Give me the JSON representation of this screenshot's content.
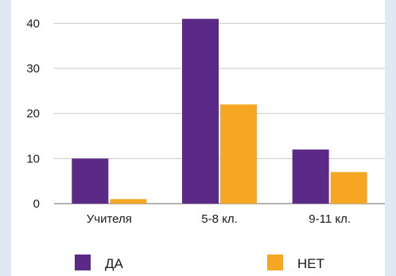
{
  "chart_data": {
    "type": "bar",
    "categories": [
      "Учителя",
      "5-8 кл.",
      "9-11 кл."
    ],
    "series": [
      {
        "name": "ДА",
        "values": [
          10,
          41,
          12
        ],
        "color": "#5b2a86"
      },
      {
        "name": "НЕТ",
        "values": [
          1,
          22,
          7
        ],
        "color": "#f5a623"
      }
    ],
    "yticks": [
      0,
      10,
      20,
      30,
      40
    ],
    "ylim": [
      0,
      42
    ],
    "grid": true,
    "legend": "bottom",
    "gridColor": "#c9c9c9"
  }
}
